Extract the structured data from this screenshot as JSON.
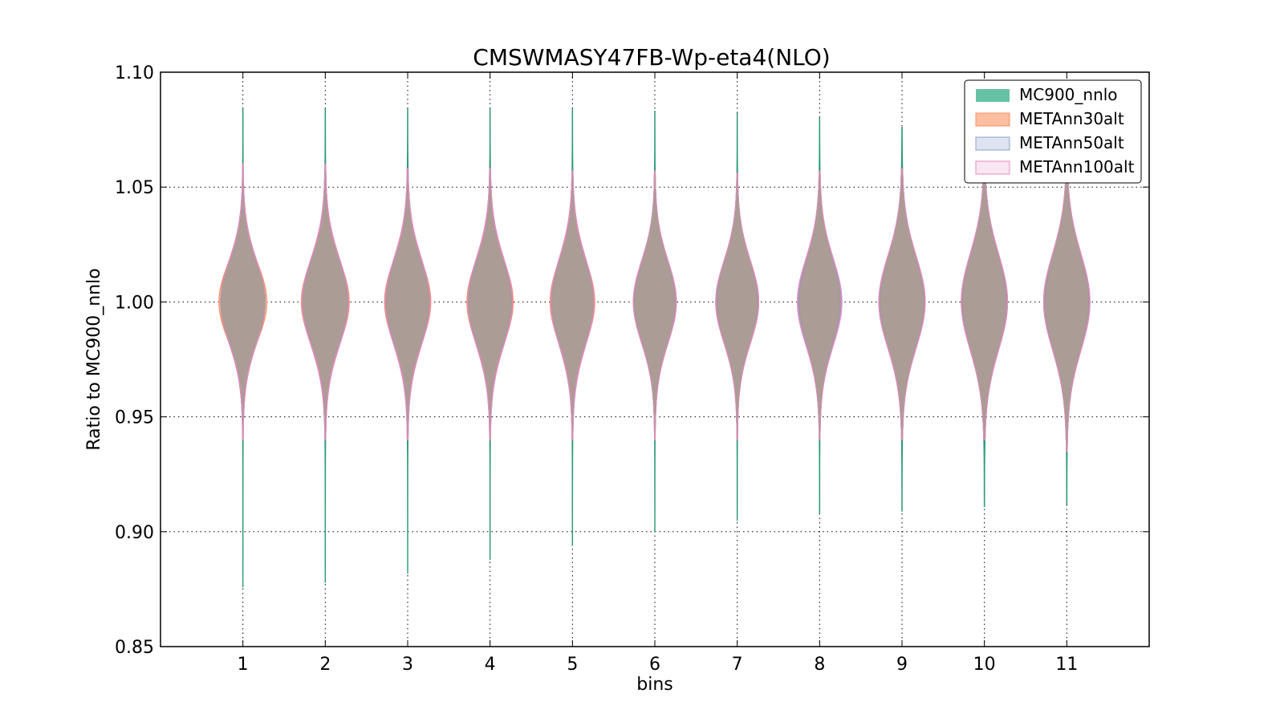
{
  "chart_data": {
    "type": "violin",
    "title": "CMSWMASY47FB-Wp-eta4(NLO)",
    "xlabel": "bins",
    "ylabel": "Ratio to MC900_nnlo",
    "ylim": [
      0.85,
      1.1
    ],
    "yticks": [
      "0.85",
      "0.90",
      "0.95",
      "1.00",
      "1.05",
      "1.10"
    ],
    "yticks_values": [
      0.85,
      0.9,
      0.95,
      1.0,
      1.05,
      1.1
    ],
    "categories": [
      "1",
      "2",
      "3",
      "4",
      "5",
      "6",
      "7",
      "8",
      "9",
      "10",
      "11"
    ],
    "x_range": [
      -0.0,
      12.0
    ],
    "grid": true,
    "legend_position": "upper right",
    "series": [
      {
        "name": "MC900_nnlo",
        "color": "#66c2a5",
        "edge": "#2e9a7a",
        "center": [
          1.0,
          1.0,
          1.0,
          1.0,
          1.0,
          1.0,
          1.0,
          1.0,
          1.0,
          1.0,
          1.0
        ],
        "min": [
          0.876,
          0.878,
          0.882,
          0.888,
          0.894,
          0.9,
          0.905,
          0.908,
          0.909,
          0.911,
          0.912
        ],
        "max": [
          1.084,
          1.084,
          1.084,
          1.084,
          1.084,
          1.083,
          1.082,
          1.08,
          1.076,
          1.068,
          1.062
        ],
        "half_width": [
          0.27,
          0.27,
          0.26,
          0.26,
          0.25,
          0.25,
          0.25,
          0.25,
          0.27,
          0.27,
          0.27
        ],
        "spread": [
          0.018,
          0.019,
          0.019,
          0.019,
          0.019,
          0.018,
          0.018,
          0.019,
          0.02,
          0.021,
          0.021
        ]
      },
      {
        "name": "METAnn30alt",
        "color": "#fc8d62",
        "edge": "#fc8d62",
        "center": [
          1.0,
          1.0,
          1.0,
          1.0,
          1.0,
          1.0,
          1.0,
          1.0,
          1.0,
          1.0,
          1.0
        ],
        "min": [
          0.94,
          0.94,
          0.94,
          0.94,
          0.94,
          0.94,
          0.94,
          0.94,
          0.94,
          0.94,
          0.935
        ],
        "max": [
          1.06,
          1.06,
          1.058,
          1.058,
          1.057,
          1.057,
          1.056,
          1.057,
          1.058,
          1.058,
          1.058
        ],
        "half_width": [
          0.29,
          0.29,
          0.28,
          0.28,
          0.27,
          0.26,
          0.26,
          0.26,
          0.28,
          0.28,
          0.28
        ],
        "spread": [
          0.017,
          0.018,
          0.018,
          0.018,
          0.018,
          0.018,
          0.018,
          0.019,
          0.02,
          0.021,
          0.021
        ]
      },
      {
        "name": "METAnn50alt",
        "color": "#8da0cb",
        "edge": "#8da0cb",
        "center": [
          1.0,
          1.0,
          1.0,
          1.0,
          1.0,
          1.0,
          1.0,
          1.0,
          1.0,
          1.0,
          1.0
        ],
        "min": [
          0.94,
          0.94,
          0.94,
          0.94,
          0.94,
          0.94,
          0.94,
          0.94,
          0.94,
          0.94,
          0.935
        ],
        "max": [
          1.06,
          1.06,
          1.058,
          1.058,
          1.057,
          1.057,
          1.056,
          1.057,
          1.058,
          1.058,
          1.058
        ],
        "half_width": [
          0.27,
          0.28,
          0.27,
          0.27,
          0.26,
          0.26,
          0.26,
          0.26,
          0.28,
          0.28,
          0.28
        ],
        "spread": [
          0.018,
          0.019,
          0.019,
          0.019,
          0.019,
          0.018,
          0.018,
          0.019,
          0.02,
          0.021,
          0.021
        ]
      },
      {
        "name": "METAnn100alt",
        "color": "#e78ac3",
        "edge": "#e78ac3",
        "center": [
          1.0,
          1.0,
          1.0,
          1.0,
          1.0,
          1.0,
          1.0,
          1.0,
          1.0,
          1.0,
          1.0
        ],
        "min": [
          0.94,
          0.94,
          0.94,
          0.94,
          0.94,
          0.94,
          0.94,
          0.94,
          0.94,
          0.94,
          0.935
        ],
        "max": [
          1.06,
          1.06,
          1.058,
          1.058,
          1.057,
          1.057,
          1.056,
          1.057,
          1.058,
          1.058,
          1.058
        ],
        "half_width": [
          0.27,
          0.28,
          0.27,
          0.27,
          0.26,
          0.26,
          0.26,
          0.27,
          0.28,
          0.28,
          0.28
        ],
        "spread": [
          0.018,
          0.019,
          0.019,
          0.019,
          0.019,
          0.018,
          0.018,
          0.019,
          0.02,
          0.021,
          0.021
        ]
      }
    ]
  }
}
